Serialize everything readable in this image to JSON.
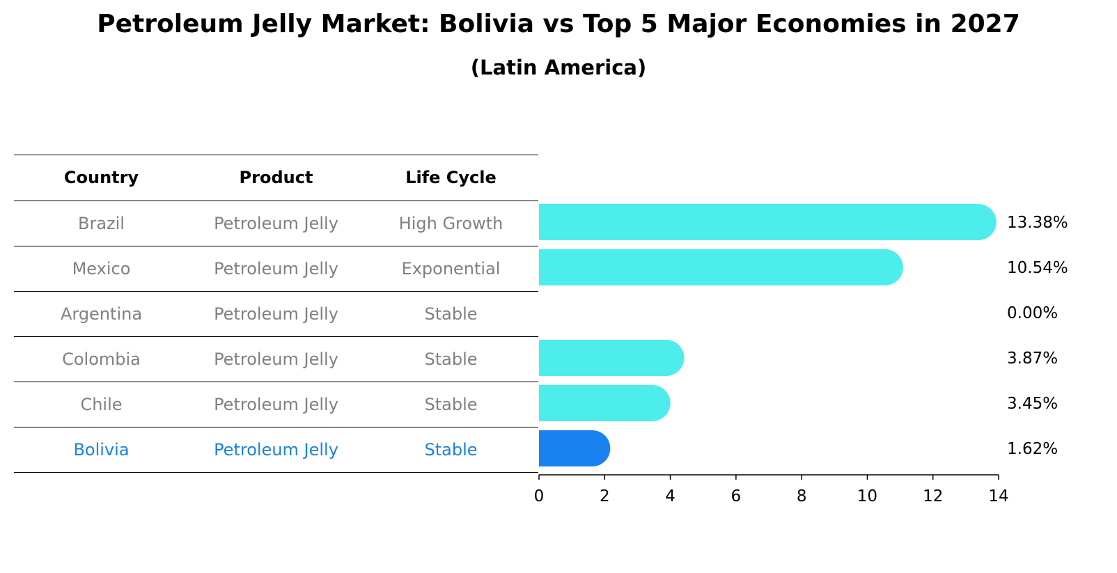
{
  "title": "Petroleum Jelly Market: Bolivia vs Top 5 Major Economies in 2027",
  "subtitle": "(Latin America)",
  "table": {
    "headers": [
      "Country",
      "Product",
      "Life Cycle"
    ],
    "rows": [
      [
        "Brazil",
        "Petroleum Jelly",
        "High Growth"
      ],
      [
        "Mexico",
        "Petroleum Jelly",
        "Exponential"
      ],
      [
        "Argentina",
        "Petroleum Jelly",
        "Stable"
      ],
      [
        "Colombia",
        "Petroleum Jelly",
        "Stable"
      ],
      [
        "Chile",
        "Petroleum Jelly",
        "Stable"
      ],
      [
        "Bolivia",
        "Petroleum Jelly",
        "Stable"
      ]
    ],
    "highlight_row": 5
  },
  "colors": {
    "bar": "#4dedeb",
    "highlight_bar": "#1a82f0",
    "highlight_text": "#1a82e0",
    "muted_text": "#808080"
  },
  "chart_data": {
    "type": "bar",
    "orientation": "horizontal",
    "categories": [
      "Brazil",
      "Mexico",
      "Argentina",
      "Colombia",
      "Chile",
      "Bolivia"
    ],
    "values": [
      13.38,
      10.54,
      0.0,
      3.87,
      3.45,
      1.62
    ],
    "value_labels": [
      "13.38%",
      "10.54%",
      "0.00%",
      "3.87%",
      "3.45%",
      "1.62%"
    ],
    "highlight": "Bolivia",
    "xlim": [
      0,
      14
    ],
    "xticks": [
      0,
      2,
      4,
      6,
      8,
      10,
      12,
      14
    ],
    "grid": false
  }
}
